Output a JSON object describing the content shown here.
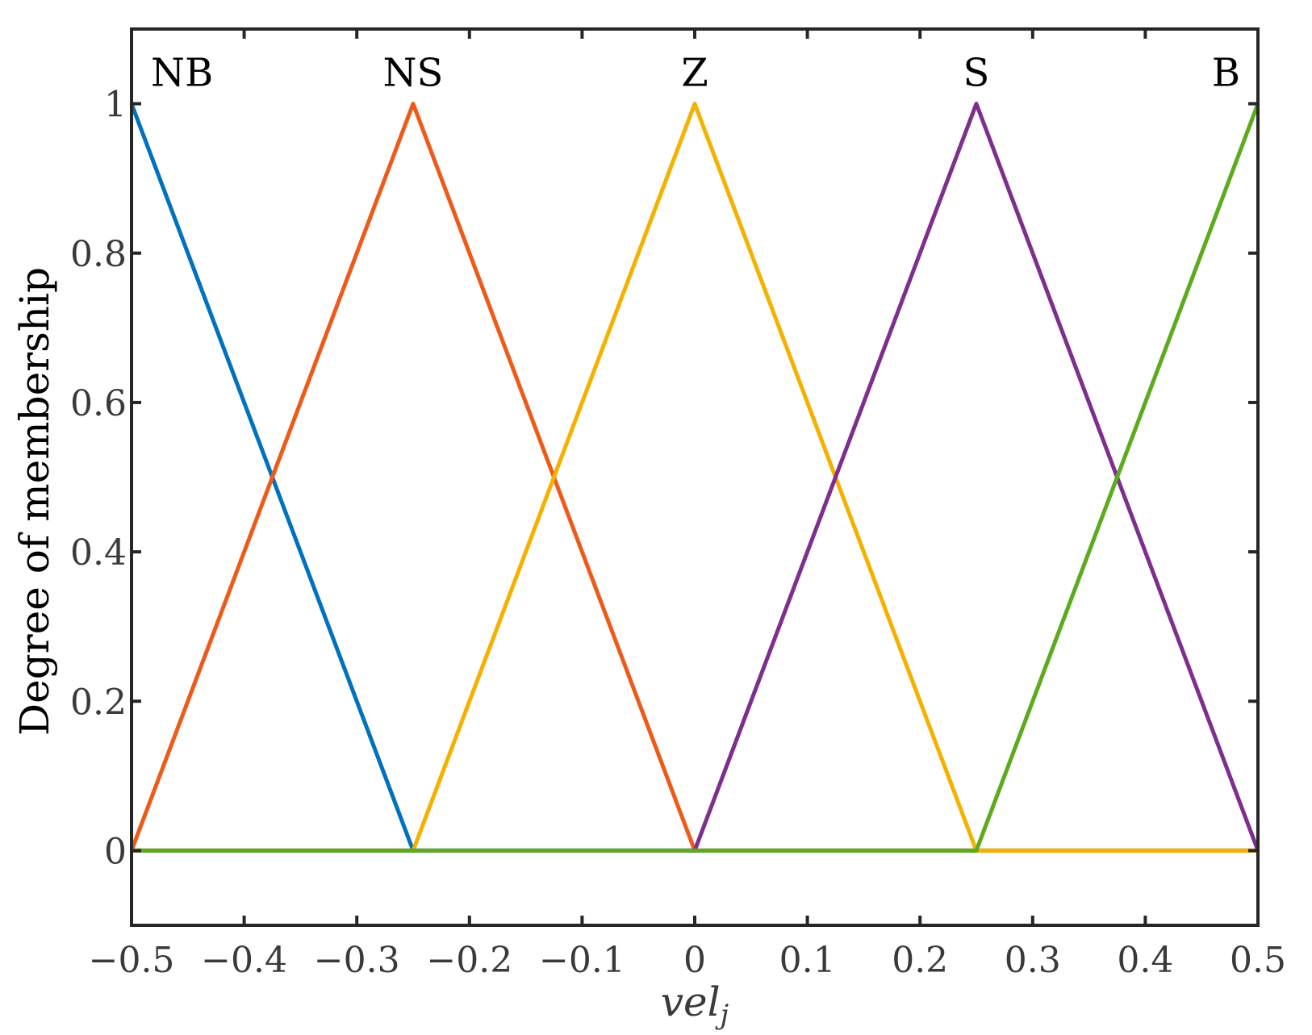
{
  "chart_data": {
    "type": "line",
    "xlabel": "vel",
    "xlabel_subscript": "j",
    "ylabel": "Degree of membership",
    "xlim": [
      -0.5,
      0.5
    ],
    "ylim": [
      -0.1,
      1.1
    ],
    "x_ticks": [
      -0.5,
      -0.4,
      -0.3,
      -0.2,
      -0.1,
      0,
      0.1,
      0.2,
      0.3,
      0.4,
      0.5
    ],
    "x_tick_labels": [
      "−0.5",
      "−0.4",
      "−0.3",
      "−0.2",
      "−0.1",
      "0",
      "0.1",
      "0.2",
      "0.3",
      "0.4",
      "0.5"
    ],
    "y_ticks": [
      0,
      0.2,
      0.4,
      0.6,
      0.8,
      1
    ],
    "y_tick_labels": [
      "0",
      "0.2",
      "0.4",
      "0.6",
      "0.8",
      "1"
    ],
    "grid": false,
    "series": [
      {
        "name": "NB",
        "color": "#0072BD",
        "x": [
          -0.5,
          -0.25,
          0.5
        ],
        "y": [
          1,
          0,
          0
        ]
      },
      {
        "name": "NS",
        "color": "#EE5A1A",
        "x": [
          -0.5,
          -0.25,
          0,
          0.5
        ],
        "y": [
          0,
          1,
          0,
          0
        ]
      },
      {
        "name": "Z",
        "color": "#F5B100",
        "x": [
          -0.5,
          -0.25,
          0,
          0.25,
          0.5
        ],
        "y": [
          0,
          0,
          1,
          0,
          0
        ]
      },
      {
        "name": "S",
        "color": "#7E2F8E",
        "x": [
          -0.5,
          0,
          0.25,
          0.5
        ],
        "y": [
          0,
          0,
          1,
          0
        ]
      },
      {
        "name": "B",
        "color": "#5DAA1E",
        "x": [
          -0.5,
          0.25,
          0.5
        ],
        "y": [
          0,
          0,
          1
        ]
      }
    ],
    "peak_labels": [
      {
        "text": "NB",
        "x": -0.5,
        "anchor": "start"
      },
      {
        "text": "NS",
        "x": -0.25,
        "anchor": "middle"
      },
      {
        "text": "Z",
        "x": 0,
        "anchor": "middle"
      },
      {
        "text": "S",
        "x": 0.25,
        "anchor": "middle"
      },
      {
        "text": "B",
        "x": 0.5,
        "anchor": "end"
      }
    ]
  }
}
